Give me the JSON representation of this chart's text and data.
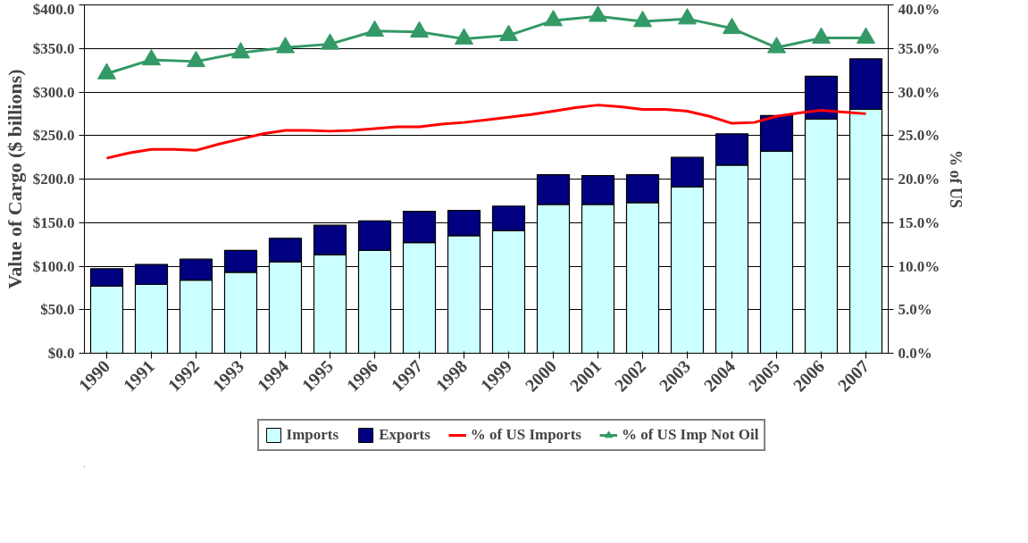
{
  "chart_data": {
    "type": "bar",
    "stacked": true,
    "ylabel": "Value of Cargo ($ billions)",
    "y2label": "% of US",
    "x": [
      1990,
      1991,
      1992,
      1993,
      1994,
      1995,
      1996,
      1997,
      1998,
      1999,
      2000,
      2001,
      2002,
      2003,
      2004,
      2005,
      2006,
      2007
    ],
    "xlim": [
      1989.5,
      2007.5
    ],
    "xticks": [
      1990,
      1991,
      1992,
      1993,
      1994,
      1995,
      1996,
      1997,
      1998,
      1999,
      2000,
      2001,
      2002,
      2003,
      2004,
      2005,
      2006,
      2007
    ],
    "ylim": [
      0,
      400
    ],
    "yticks": [
      {
        "value": 0,
        "label": "$0.0"
      },
      {
        "value": 50,
        "label": "$50.0"
      },
      {
        "value": 100,
        "label": "$100.0"
      },
      {
        "value": 150,
        "label": "$150.0"
      },
      {
        "value": 200,
        "label": "$200.0"
      },
      {
        "value": 250,
        "label": "$250.0"
      },
      {
        "value": 300,
        "label": "$300.0"
      },
      {
        "value": 350,
        "label": "$350.0"
      },
      {
        "value": 400,
        "label": "$400.0"
      }
    ],
    "y2lim": [
      0,
      40
    ],
    "y2ticks": [
      {
        "value": 0,
        "label": "0.0%"
      },
      {
        "value": 5,
        "label": "5.0%"
      },
      {
        "value": 10,
        "label": "10.0%"
      },
      {
        "value": 15,
        "label": "15.0%"
      },
      {
        "value": 20,
        "label": "20.0%"
      },
      {
        "value": 25,
        "label": "25.0%"
      },
      {
        "value": 30,
        "label": "30.0%"
      },
      {
        "value": 35,
        "label": "35.0%"
      },
      {
        "value": 40,
        "label": "40.0%"
      }
    ],
    "grid": "y",
    "legend": "bottom",
    "series": [
      {
        "name": "Imports",
        "color": "#ccffff",
        "values": [
          77,
          79,
          84,
          93,
          105,
          113,
          118,
          127,
          135,
          141,
          171,
          171,
          173,
          191,
          216,
          232,
          269,
          280
        ]
      },
      {
        "name": "Exports",
        "color": "#000080",
        "values": [
          20,
          23,
          24,
          25,
          27,
          34,
          34,
          36,
          29,
          28,
          34,
          33,
          32,
          34,
          36,
          41,
          49,
          58
        ]
      },
      {
        "name": "% of US Imports",
        "type": "line",
        "axis": "y2",
        "color": "#ff0000",
        "x": [
          1990,
          1990.5,
          1991,
          1991.5,
          1992,
          1992.5,
          1993,
          1993.5,
          1994,
          1994.5,
          1995,
          1995.5,
          1996,
          1996.5,
          1997,
          1997.5,
          1998,
          1998.5,
          1999,
          1999.5,
          2000,
          2000.5,
          2001,
          2001.5,
          2002,
          2002.5,
          2003,
          2003.5,
          2004,
          2004.5,
          2005,
          2005.5,
          2006,
          2006.5,
          2007
        ],
        "values": [
          22.4,
          23.0,
          23.4,
          23.4,
          23.3,
          24.0,
          24.6,
          25.2,
          25.6,
          25.6,
          25.5,
          25.6,
          25.8,
          26.0,
          26.0,
          26.3,
          26.5,
          26.8,
          27.1,
          27.4,
          27.8,
          28.2,
          28.5,
          28.3,
          28.0,
          28.0,
          27.8,
          27.2,
          26.4,
          26.5,
          27.2,
          27.6,
          27.9,
          27.7,
          27.5
        ]
      },
      {
        "name": "% of US Imp Not Oil",
        "type": "line",
        "axis": "y2",
        "color": "#339966",
        "marker": "triangle",
        "values": [
          32.1,
          33.7,
          33.5,
          34.5,
          35.1,
          35.5,
          37.0,
          36.9,
          36.1,
          36.5,
          38.2,
          38.7,
          38.1,
          38.4,
          37.3,
          35.1,
          36.2,
          36.2
        ]
      }
    ]
  }
}
